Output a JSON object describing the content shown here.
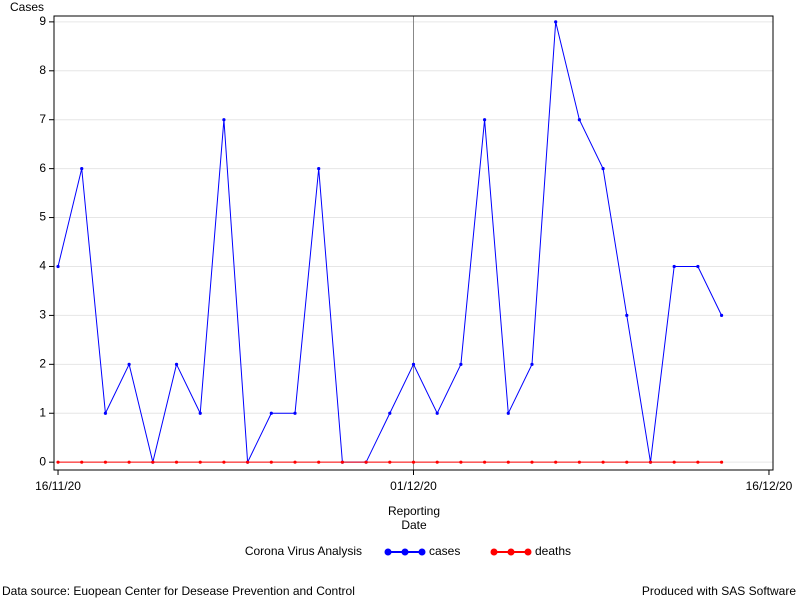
{
  "chart_data": {
    "type": "line",
    "y_label": "Cases",
    "x_label": [
      "Reporting",
      "Date"
    ],
    "legend_title": "Corona Virus Analysis",
    "footnote_left": "Data source: Euopean Center for Desease Prevention and Control",
    "footnote_right": "Produced with SAS Software",
    "x": [
      "2020-11-16",
      "2020-11-17",
      "2020-11-18",
      "2020-11-19",
      "2020-11-20",
      "2020-11-21",
      "2020-11-22",
      "2020-11-23",
      "2020-11-24",
      "2020-11-25",
      "2020-11-26",
      "2020-11-27",
      "2020-11-28",
      "2020-11-29",
      "2020-11-30",
      "2020-12-01",
      "2020-12-02",
      "2020-12-03",
      "2020-12-04",
      "2020-12-05",
      "2020-12-06",
      "2020-12-07",
      "2020-12-08",
      "2020-12-09",
      "2020-12-10",
      "2020-12-11",
      "2020-12-12",
      "2020-12-13",
      "2020-12-14"
    ],
    "series": [
      {
        "name": "cases",
        "color": "#0000ff",
        "values": [
          4,
          6,
          1,
          2,
          0,
          2,
          1,
          7,
          0,
          1,
          1,
          6,
          0,
          0,
          1,
          2,
          1,
          2,
          7,
          1,
          2,
          9,
          7,
          6,
          3,
          0,
          4,
          4,
          3
        ]
      },
      {
        "name": "deaths",
        "color": "#ff0000",
        "values": [
          0,
          0,
          0,
          0,
          0,
          0,
          0,
          0,
          0,
          0,
          0,
          0,
          0,
          0,
          0,
          0,
          0,
          0,
          0,
          0,
          0,
          0,
          0,
          0,
          0,
          0,
          0,
          0,
          0
        ]
      }
    ],
    "xlim": [
      "2020-11-16",
      "2020-12-16"
    ],
    "xticks": [
      {
        "value": "2020-11-16",
        "label": "16/11/20"
      },
      {
        "value": "2020-12-01",
        "label": "01/12/20"
      },
      {
        "value": "2020-12-16",
        "label": "16/12/20"
      }
    ],
    "reference_line_x": "2020-12-01",
    "ylim": [
      -0.16,
      9.12
    ],
    "yticks": [
      0,
      1,
      2,
      3,
      4,
      5,
      6,
      7,
      8,
      9
    ],
    "grid": true,
    "legend_position": "bottom"
  }
}
